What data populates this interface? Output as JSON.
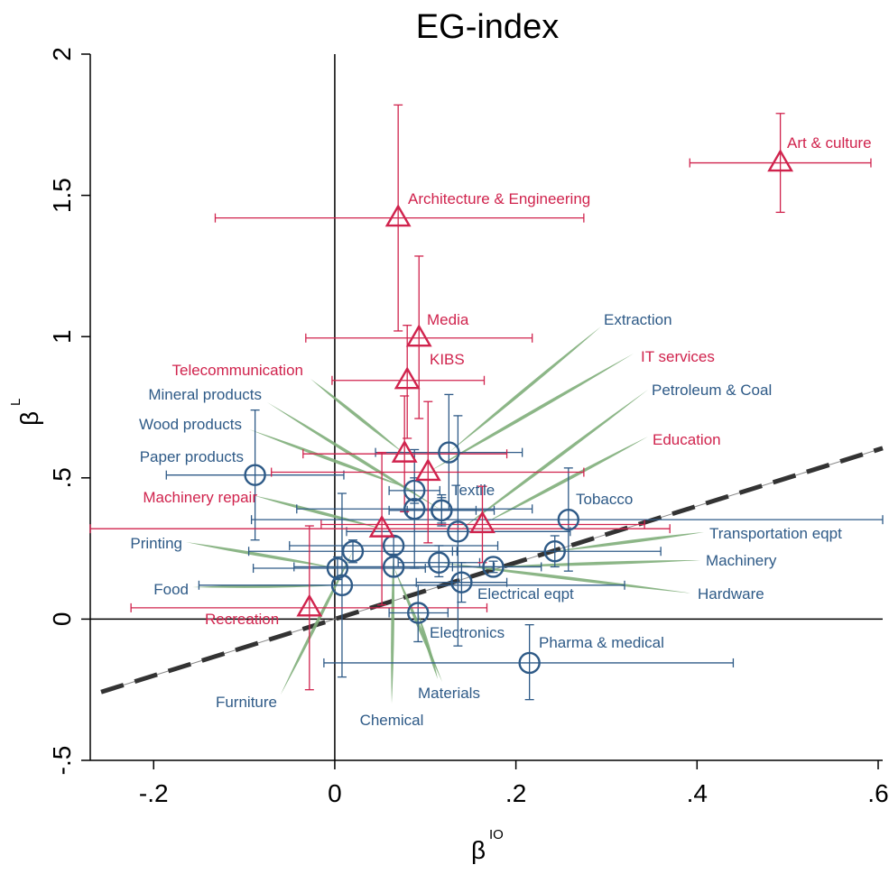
{
  "chart_data": {
    "type": "scatter",
    "title": "EG-index",
    "xlabel": {
      "base": "β",
      "sup": "IO"
    },
    "ylabel": {
      "base": "β",
      "sup": "L"
    },
    "xlim": [
      -0.27,
      0.605
    ],
    "ylim": [
      -0.5,
      2.0
    ],
    "xticks": [
      -0.2,
      0,
      0.2,
      0.4,
      0.6
    ],
    "xtick_labels": [
      "-.2",
      "0",
      ".2",
      ".4",
      ".6"
    ],
    "yticks": [
      -0.5,
      0,
      0.5,
      1,
      1.5,
      2
    ],
    "ytick_labels": [
      "-.5",
      "0",
      ".5",
      "1",
      "1.5",
      "2"
    ],
    "fit_line": {
      "slope": 1.0,
      "intercept": 0.0
    },
    "colors": {
      "manufacturing": "#2e5a87",
      "services": "#d0234d",
      "leader": "#7fae7a",
      "fit": "#333333"
    },
    "series": [
      {
        "marker": "circle",
        "color": "#2e5a87",
        "points": [
          {
            "label": "Extraction",
            "x": 0.126,
            "y": 0.59,
            "xlo": 0.045,
            "xhi": 0.207,
            "ylo": 0.385,
            "yhi": 0.795
          },
          {
            "label": "Petroleum & Coal",
            "x": 0.136,
            "y": 0.31,
            "xlo": 0.013,
            "xhi": 0.26,
            "ylo": -0.095,
            "yhi": 0.72
          },
          {
            "label": "Tobacco",
            "x": 0.258,
            "y": 0.352,
            "xlo": -0.092,
            "xhi": 0.605,
            "ylo": 0.17,
            "yhi": 0.535
          },
          {
            "label": "Transportation eqpt",
            "x": 0.243,
            "y": 0.24,
            "xlo": 0.13,
            "xhi": 0.36,
            "ylo": 0.185,
            "yhi": 0.295
          },
          {
            "label": "Machinery",
            "x": 0.175,
            "y": 0.185,
            "xlo": 0.13,
            "xhi": 0.228,
            "ylo": 0.165,
            "yhi": 0.205
          },
          {
            "label": "Hardware",
            "x": 0.115,
            "y": 0.2,
            "xlo": 0.07,
            "xhi": 0.16,
            "ylo": 0.15,
            "yhi": 0.26
          },
          {
            "label": "Electrical eqpt",
            "x": 0.14,
            "y": 0.13,
            "xlo": 0.09,
            "xhi": 0.19,
            "ylo": 0.06,
            "yhi": 0.2
          },
          {
            "label": "Pharma & medical",
            "x": 0.215,
            "y": -0.155,
            "xlo": -0.012,
            "xhi": 0.44,
            "ylo": -0.285,
            "yhi": -0.02
          },
          {
            "label": "Electronics",
            "x": 0.092,
            "y": 0.022,
            "xlo": 0.06,
            "xhi": 0.125,
            "ylo": -0.08,
            "yhi": 0.12
          },
          {
            "label": "Materials",
            "x": 0.065,
            "y": 0.185,
            "xlo": -0.045,
            "xhi": 0.176,
            "ylo": 0.15,
            "yhi": 0.22
          },
          {
            "label": "Chemical",
            "x": 0.065,
            "y": 0.26,
            "xlo": -0.05,
            "xhi": 0.18,
            "ylo": 0.23,
            "yhi": 0.29
          },
          {
            "label": "Furniture",
            "x": 0.02,
            "y": 0.24,
            "xlo": -0.095,
            "xhi": 0.135,
            "ylo": 0.2,
            "yhi": 0.28
          },
          {
            "label": "Food",
            "x": 0.008,
            "y": 0.12,
            "xlo": -0.15,
            "xhi": 0.32,
            "ylo": -0.205,
            "yhi": 0.445
          },
          {
            "label": "Printing",
            "x": 0.003,
            "y": 0.18,
            "xlo": -0.09,
            "xhi": 0.1,
            "ylo": 0.14,
            "yhi": 0.22
          },
          {
            "label": "Machinery repair",
            "x": 0.088,
            "y": 0.39,
            "xlo": -0.042,
            "xhi": 0.218,
            "ylo": 0.18,
            "yhi": 0.6
          },
          {
            "label": "Paper products",
            "x": -0.088,
            "y": 0.51,
            "xlo": -0.186,
            "xhi": 0.01,
            "ylo": 0.28,
            "yhi": 0.74
          },
          {
            "label": "Wood products",
            "x": 0.088,
            "y": 0.455,
            "xlo": 0.06,
            "xhi": 0.116,
            "ylo": 0.41,
            "yhi": 0.5
          },
          {
            "label": "Mineral products",
            "x": 0.118,
            "y": 0.385,
            "xlo": 0.06,
            "xhi": 0.176,
            "ylo": 0.33,
            "yhi": 0.44
          },
          {
            "label": "Textile",
            "x": 0.118,
            "y": 0.385,
            "xlo": 0.08,
            "xhi": 0.156,
            "ylo": 0.34,
            "yhi": 0.43
          }
        ]
      },
      {
        "marker": "triangle",
        "color": "#d0234d",
        "points": [
          {
            "label": "Art & culture",
            "x": 0.492,
            "y": 1.615,
            "xlo": 0.392,
            "xhi": 0.592,
            "ylo": 1.44,
            "yhi": 1.79
          },
          {
            "label": "Architecture & Engineering",
            "x": 0.07,
            "y": 1.42,
            "xlo": -0.132,
            "xhi": 0.275,
            "ylo": 1.02,
            "yhi": 1.82
          },
          {
            "label": "Media",
            "x": 0.093,
            "y": 0.995,
            "xlo": -0.032,
            "xhi": 0.218,
            "ylo": 0.71,
            "yhi": 1.285
          },
          {
            "label": "KIBS",
            "x": 0.08,
            "y": 0.845,
            "xlo": -0.003,
            "xhi": 0.165,
            "ylo": 0.64,
            "yhi": 1.04
          },
          {
            "label": "Telecommunication",
            "x": 0.077,
            "y": 0.585,
            "xlo": -0.035,
            "xhi": 0.19,
            "ylo": 0.38,
            "yhi": 0.79
          },
          {
            "label": "IT services",
            "x": 0.103,
            "y": 0.52,
            "xlo": -0.07,
            "xhi": 0.275,
            "ylo": 0.27,
            "yhi": 0.77
          },
          {
            "label": "Education",
            "x": 0.163,
            "y": 0.335,
            "xlo": -0.015,
            "xhi": 0.342,
            "ylo": 0.2,
            "yhi": 0.47
          },
          {
            "label": "Recreation",
            "x": -0.028,
            "y": 0.04,
            "xlo": -0.225,
            "xhi": 0.168,
            "ylo": -0.25,
            "yhi": 0.33
          },
          {
            "label": "Machinery repair",
            "x": 0.052,
            "y": 0.32,
            "xlo": -0.27,
            "xhi": 0.37,
            "ylo": 0.05,
            "yhi": 0.59
          }
        ]
      }
    ],
    "labels": [
      {
        "text": "Art & culture",
        "color": "#d0234d"
      },
      {
        "text": "Architecture & Engineering",
        "color": "#d0234d"
      },
      {
        "text": "Media",
        "color": "#d0234d"
      },
      {
        "text": "KIBS",
        "color": "#d0234d"
      },
      {
        "text": "Telecommunication",
        "color": "#d0234d"
      },
      {
        "text": "IT services",
        "color": "#d0234d"
      },
      {
        "text": "Education",
        "color": "#d0234d"
      },
      {
        "text": "Machinery repair",
        "color": "#d0234d"
      },
      {
        "text": "Recreation",
        "color": "#d0234d"
      },
      {
        "text": "Extraction",
        "color": "#2e5a87"
      },
      {
        "text": "Petroleum & Coal",
        "color": "#2e5a87"
      },
      {
        "text": "Mineral products",
        "color": "#2e5a87"
      },
      {
        "text": "Wood products",
        "color": "#2e5a87"
      },
      {
        "text": "Paper products",
        "color": "#2e5a87"
      },
      {
        "text": "Textile",
        "color": "#2e5a87"
      },
      {
        "text": "Tobacco",
        "color": "#2e5a87"
      },
      {
        "text": "Transportation eqpt",
        "color": "#2e5a87"
      },
      {
        "text": "Printing",
        "color": "#2e5a87"
      },
      {
        "text": "Machinery",
        "color": "#2e5a87"
      },
      {
        "text": "Food",
        "color": "#2e5a87"
      },
      {
        "text": "Hardware",
        "color": "#2e5a87"
      },
      {
        "text": "Electrical eqpt",
        "color": "#2e5a87"
      },
      {
        "text": "Electronics",
        "color": "#2e5a87"
      },
      {
        "text": "Pharma & medical",
        "color": "#2e5a87"
      },
      {
        "text": "Materials",
        "color": "#2e5a87"
      },
      {
        "text": "Furniture",
        "color": "#2e5a87"
      },
      {
        "text": "Chemical",
        "color": "#2e5a87"
      }
    ]
  }
}
